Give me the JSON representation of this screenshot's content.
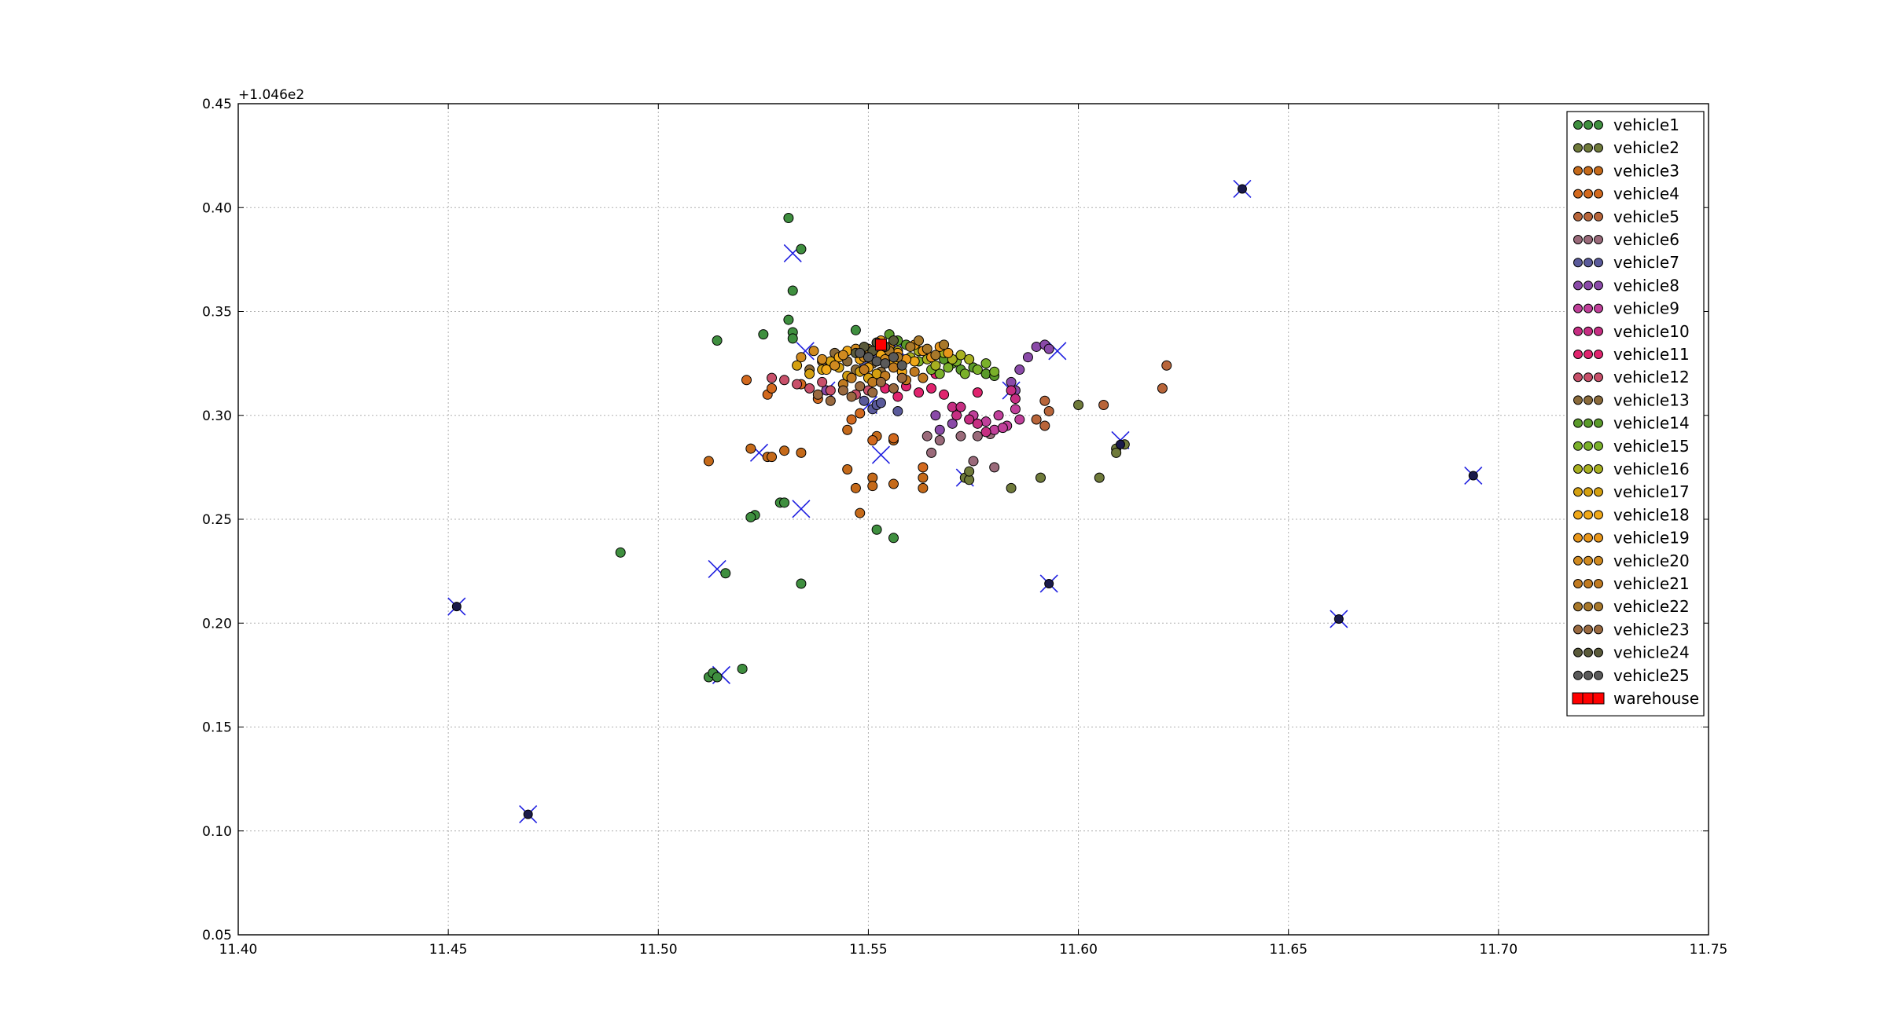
{
  "chart_data": {
    "type": "scatter",
    "title": "",
    "xlabel": "",
    "ylabel": "",
    "xlim": [
      11.4,
      11.75
    ],
    "ylim": [
      0.05,
      0.45
    ],
    "xticks": [
      "11.40",
      "11.45",
      "11.50",
      "11.55",
      "11.60",
      "11.65",
      "11.70",
      "11.75"
    ],
    "yticks": [
      "0.05",
      "0.10",
      "0.15",
      "0.20",
      "0.25",
      "0.30",
      "0.35",
      "0.40",
      "0.45"
    ],
    "y_offset_label": "+1.046e2",
    "grid": true,
    "legend_position": "top-right",
    "series": [
      {
        "name": "vehicle1",
        "color": "#3f8f3f",
        "points": [
          [
            11.531,
            0.395
          ],
          [
            11.534,
            0.38
          ],
          [
            11.532,
            0.36
          ],
          [
            11.531,
            0.346
          ],
          [
            11.532,
            0.34
          ],
          [
            11.532,
            0.337
          ],
          [
            11.514,
            0.336
          ],
          [
            11.525,
            0.339
          ],
          [
            11.529,
            0.258
          ],
          [
            11.53,
            0.258
          ],
          [
            11.523,
            0.252
          ],
          [
            11.522,
            0.251
          ],
          [
            11.534,
            0.219
          ],
          [
            11.516,
            0.224
          ],
          [
            11.491,
            0.234
          ],
          [
            11.512,
            0.174
          ],
          [
            11.513,
            0.176
          ],
          [
            11.514,
            0.174
          ],
          [
            11.52,
            0.178
          ],
          [
            11.552,
            0.245
          ],
          [
            11.556,
            0.241
          ],
          [
            11.547,
            0.341
          ]
        ]
      },
      {
        "name": "vehicle2",
        "color": "#6f7a3a",
        "points": [
          [
            11.573,
            0.27
          ],
          [
            11.574,
            0.269
          ],
          [
            11.574,
            0.273
          ],
          [
            11.584,
            0.265
          ],
          [
            11.591,
            0.27
          ],
          [
            11.605,
            0.27
          ],
          [
            11.609,
            0.284
          ],
          [
            11.609,
            0.282
          ],
          [
            11.611,
            0.286
          ],
          [
            11.6,
            0.305
          ]
        ]
      },
      {
        "name": "vehicle3",
        "color": "#c56a1a",
        "points": [
          [
            11.512,
            0.278
          ],
          [
            11.522,
            0.284
          ],
          [
            11.526,
            0.28
          ],
          [
            11.527,
            0.28
          ],
          [
            11.53,
            0.283
          ],
          [
            11.534,
            0.282
          ],
          [
            11.545,
            0.274
          ],
          [
            11.545,
            0.293
          ],
          [
            11.547,
            0.265
          ],
          [
            11.548,
            0.253
          ],
          [
            11.551,
            0.27
          ],
          [
            11.551,
            0.266
          ],
          [
            11.552,
            0.29
          ],
          [
            11.556,
            0.267
          ],
          [
            11.556,
            0.288
          ],
          [
            11.563,
            0.27
          ],
          [
            11.563,
            0.265
          ]
        ]
      },
      {
        "name": "vehicle4",
        "color": "#d2691e",
        "points": [
          [
            11.526,
            0.31
          ],
          [
            11.527,
            0.313
          ],
          [
            11.521,
            0.317
          ],
          [
            11.534,
            0.315
          ],
          [
            11.538,
            0.308
          ],
          [
            11.548,
            0.301
          ],
          [
            11.546,
            0.298
          ],
          [
            11.551,
            0.288
          ],
          [
            11.556,
            0.289
          ],
          [
            11.563,
            0.275
          ]
        ]
      },
      {
        "name": "vehicle5",
        "color": "#b8653a",
        "points": [
          [
            11.592,
            0.307
          ],
          [
            11.593,
            0.302
          ],
          [
            11.592,
            0.295
          ],
          [
            11.606,
            0.305
          ],
          [
            11.62,
            0.313
          ],
          [
            11.621,
            0.324
          ],
          [
            11.59,
            0.298
          ]
        ]
      },
      {
        "name": "vehicle6",
        "color": "#9a6a7a",
        "points": [
          [
            11.564,
            0.29
          ],
          [
            11.567,
            0.288
          ],
          [
            11.572,
            0.29
          ],
          [
            11.576,
            0.29
          ],
          [
            11.579,
            0.291
          ],
          [
            11.565,
            0.282
          ],
          [
            11.575,
            0.278
          ],
          [
            11.58,
            0.275
          ]
        ]
      },
      {
        "name": "vehicle7",
        "color": "#5a5a9a",
        "points": [
          [
            11.549,
            0.307
          ],
          [
            11.551,
            0.303
          ],
          [
            11.552,
            0.305
          ],
          [
            11.553,
            0.306
          ],
          [
            11.557,
            0.302
          ],
          [
            11.549,
            0.325
          ],
          [
            11.552,
            0.328
          ],
          [
            11.555,
            0.33
          ]
        ]
      },
      {
        "name": "vehicle8",
        "color": "#8a4aa8",
        "points": [
          [
            11.567,
            0.293
          ],
          [
            11.57,
            0.296
          ],
          [
            11.586,
            0.322
          ],
          [
            11.588,
            0.328
          ],
          [
            11.59,
            0.333
          ],
          [
            11.592,
            0.334
          ],
          [
            11.593,
            0.332
          ],
          [
            11.584,
            0.316
          ],
          [
            11.585,
            0.312
          ],
          [
            11.566,
            0.3
          ],
          [
            11.54,
            0.312
          ]
        ]
      },
      {
        "name": "vehicle9",
        "color": "#c0409a",
        "points": [
          [
            11.575,
            0.3
          ],
          [
            11.578,
            0.297
          ],
          [
            11.581,
            0.3
          ],
          [
            11.583,
            0.295
          ],
          [
            11.585,
            0.303
          ],
          [
            11.586,
            0.298
          ],
          [
            11.58,
            0.293
          ],
          [
            11.582,
            0.294
          ]
        ]
      },
      {
        "name": "vehicle10",
        "color": "#c62e82",
        "points": [
          [
            11.57,
            0.304
          ],
          [
            11.572,
            0.304
          ],
          [
            11.574,
            0.298
          ],
          [
            11.576,
            0.296
          ],
          [
            11.578,
            0.292
          ],
          [
            11.584,
            0.312
          ],
          [
            11.585,
            0.308
          ],
          [
            11.571,
            0.3
          ]
        ]
      },
      {
        "name": "vehicle11",
        "color": "#e0246e",
        "points": [
          [
            11.559,
            0.314
          ],
          [
            11.562,
            0.311
          ],
          [
            11.565,
            0.313
          ],
          [
            11.568,
            0.31
          ],
          [
            11.576,
            0.311
          ],
          [
            11.554,
            0.313
          ],
          [
            11.557,
            0.309
          ],
          [
            11.566,
            0.32
          ]
        ]
      },
      {
        "name": "vehicle12",
        "color": "#c8506a",
        "points": [
          [
            11.527,
            0.318
          ],
          [
            11.53,
            0.317
          ],
          [
            11.533,
            0.315
          ],
          [
            11.536,
            0.313
          ],
          [
            11.539,
            0.316
          ],
          [
            11.541,
            0.312
          ],
          [
            11.544,
            0.315
          ],
          [
            11.547,
            0.31
          ],
          [
            11.55,
            0.312
          ]
        ]
      },
      {
        "name": "vehicle13",
        "color": "#8a6a3a",
        "points": [
          [
            11.536,
            0.322
          ],
          [
            11.539,
            0.326
          ],
          [
            11.542,
            0.33
          ],
          [
            11.545,
            0.326
          ],
          [
            11.547,
            0.322
          ],
          [
            11.549,
            0.328
          ],
          [
            11.551,
            0.325
          ],
          [
            11.553,
            0.321
          ],
          [
            11.555,
            0.327
          ]
        ]
      },
      {
        "name": "vehicle14",
        "color": "#5a9a2a",
        "points": [
          [
            11.555,
            0.339
          ],
          [
            11.557,
            0.336
          ],
          [
            11.559,
            0.334
          ],
          [
            11.568,
            0.327
          ],
          [
            11.57,
            0.325
          ],
          [
            11.572,
            0.322
          ],
          [
            11.575,
            0.323
          ],
          [
            11.578,
            0.32
          ],
          [
            11.58,
            0.319
          ]
        ]
      },
      {
        "name": "vehicle15",
        "color": "#7ab02a",
        "points": [
          [
            11.562,
            0.326
          ],
          [
            11.565,
            0.322
          ],
          [
            11.567,
            0.32
          ],
          [
            11.569,
            0.323
          ],
          [
            11.571,
            0.326
          ],
          [
            11.573,
            0.32
          ],
          [
            11.576,
            0.322
          ],
          [
            11.578,
            0.325
          ],
          [
            11.58,
            0.321
          ]
        ]
      },
      {
        "name": "vehicle16",
        "color": "#a8b020",
        "points": [
          [
            11.557,
            0.331
          ],
          [
            11.56,
            0.328
          ],
          [
            11.562,
            0.331
          ],
          [
            11.564,
            0.327
          ],
          [
            11.566,
            0.324
          ],
          [
            11.568,
            0.33
          ],
          [
            11.57,
            0.327
          ],
          [
            11.572,
            0.329
          ],
          [
            11.574,
            0.327
          ]
        ]
      },
      {
        "name": "vehicle17",
        "color": "#d4a010",
        "points": [
          [
            11.533,
            0.324
          ],
          [
            11.536,
            0.32
          ],
          [
            11.539,
            0.322
          ],
          [
            11.541,
            0.326
          ],
          [
            11.543,
            0.323
          ],
          [
            11.545,
            0.319
          ],
          [
            11.548,
            0.321
          ],
          [
            11.55,
            0.318
          ],
          [
            11.552,
            0.32
          ]
        ]
      },
      {
        "name": "vehicle18",
        "color": "#f0a818",
        "points": [
          [
            11.54,
            0.322
          ],
          [
            11.543,
            0.328
          ],
          [
            11.545,
            0.331
          ],
          [
            11.548,
            0.327
          ],
          [
            11.55,
            0.323
          ],
          [
            11.553,
            0.329
          ],
          [
            11.556,
            0.325
          ],
          [
            11.558,
            0.321
          ],
          [
            11.561,
            0.326
          ]
        ]
      },
      {
        "name": "vehicle19",
        "color": "#e8961a",
        "points": [
          [
            11.553,
            0.336
          ],
          [
            11.555,
            0.333
          ],
          [
            11.557,
            0.33
          ],
          [
            11.559,
            0.327
          ],
          [
            11.561,
            0.334
          ],
          [
            11.563,
            0.331
          ],
          [
            11.565,
            0.328
          ],
          [
            11.567,
            0.333
          ],
          [
            11.569,
            0.33
          ]
        ]
      },
      {
        "name": "vehicle20",
        "color": "#d08a20",
        "points": [
          [
            11.534,
            0.328
          ],
          [
            11.537,
            0.331
          ],
          [
            11.539,
            0.327
          ],
          [
            11.542,
            0.324
          ],
          [
            11.544,
            0.329
          ],
          [
            11.547,
            0.332
          ],
          [
            11.549,
            0.328
          ],
          [
            11.551,
            0.331
          ],
          [
            11.554,
            0.327
          ]
        ]
      },
      {
        "name": "vehicle21",
        "color": "#c07a20",
        "points": [
          [
            11.544,
            0.315
          ],
          [
            11.546,
            0.318
          ],
          [
            11.549,
            0.322
          ],
          [
            11.551,
            0.316
          ],
          [
            11.554,
            0.319
          ],
          [
            11.556,
            0.323
          ],
          [
            11.559,
            0.317
          ],
          [
            11.561,
            0.321
          ],
          [
            11.563,
            0.318
          ]
        ]
      },
      {
        "name": "vehicle22",
        "color": "#a8782a",
        "points": [
          [
            11.55,
            0.332
          ],
          [
            11.552,
            0.335
          ],
          [
            11.555,
            0.331
          ],
          [
            11.557,
            0.328
          ],
          [
            11.56,
            0.333
          ],
          [
            11.562,
            0.336
          ],
          [
            11.564,
            0.332
          ],
          [
            11.566,
            0.329
          ],
          [
            11.568,
            0.334
          ]
        ]
      },
      {
        "name": "vehicle23",
        "color": "#9a6a40",
        "points": [
          [
            11.538,
            0.31
          ],
          [
            11.541,
            0.307
          ],
          [
            11.544,
            0.312
          ],
          [
            11.546,
            0.309
          ],
          [
            11.548,
            0.314
          ],
          [
            11.551,
            0.311
          ],
          [
            11.553,
            0.316
          ],
          [
            11.556,
            0.313
          ],
          [
            11.558,
            0.318
          ]
        ]
      },
      {
        "name": "vehicle24",
        "color": "#5a5a3a",
        "points": [
          [
            11.552,
            0.335
          ],
          [
            11.554,
            0.333
          ],
          [
            11.556,
            0.336
          ],
          [
            11.551,
            0.331
          ],
          [
            11.549,
            0.333
          ],
          [
            11.547,
            0.33
          ]
        ]
      },
      {
        "name": "vehicle25",
        "color": "#5a5a5a",
        "points": [
          [
            11.548,
            0.33
          ],
          [
            11.55,
            0.328
          ],
          [
            11.552,
            0.326
          ],
          [
            11.554,
            0.325
          ],
          [
            11.556,
            0.328
          ],
          [
            11.558,
            0.324
          ]
        ]
      }
    ],
    "blue_x_markers": {
      "color": "#1f1fe0",
      "points": [
        [
          11.532,
          0.378
        ],
        [
          11.535,
          0.331
        ],
        [
          11.534,
          0.255
        ],
        [
          11.524,
          0.282
        ],
        [
          11.514,
          0.226
        ],
        [
          11.515,
          0.175
        ],
        [
          11.553,
          0.281
        ],
        [
          11.573,
          0.27
        ],
        [
          11.584,
          0.312
        ],
        [
          11.595,
          0.331
        ],
        [
          11.61,
          0.288
        ],
        [
          11.593,
          0.219
        ],
        [
          11.452,
          0.208
        ],
        [
          11.469,
          0.108
        ],
        [
          11.639,
          0.409
        ],
        [
          11.662,
          0.202
        ],
        [
          11.694,
          0.271
        ],
        [
          11.557,
          0.332
        ],
        [
          11.55,
          0.305
        ],
        [
          11.54,
          0.312
        ]
      ]
    },
    "isolated_dots": {
      "color": "#1a1a4a",
      "points": [
        [
          11.452,
          0.208
        ],
        [
          11.469,
          0.108
        ],
        [
          11.639,
          0.409
        ],
        [
          11.662,
          0.202
        ],
        [
          11.694,
          0.271
        ],
        [
          11.593,
          0.219
        ],
        [
          11.61,
          0.286
        ]
      ]
    },
    "warehouse": {
      "name": "warehouse",
      "color": "#ff0000",
      "points": [
        [
          11.553,
          0.334
        ]
      ]
    }
  }
}
